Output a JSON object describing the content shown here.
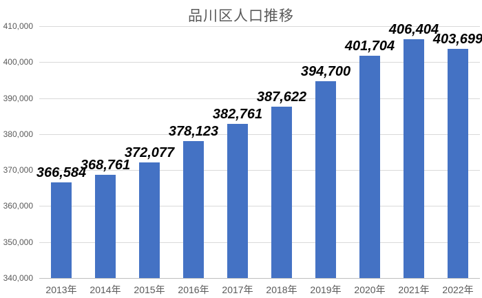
{
  "chart_data": {
    "type": "bar",
    "title": "品川区人口推移",
    "categories": [
      "2013年",
      "2014年",
      "2015年",
      "2016年",
      "2017年",
      "2018年",
      "2019年",
      "2020年",
      "2021年",
      "2022年"
    ],
    "values": [
      366584,
      368761,
      372077,
      378123,
      382761,
      387622,
      394700,
      401704,
      406404,
      403699
    ],
    "data_labels": [
      "366,584",
      "368,761",
      "372,077",
      "378,123",
      "382,761",
      "387,622",
      "394,700",
      "401,704",
      "406,404",
      "403,699"
    ],
    "xlabel": "",
    "ylabel": "",
    "ylim": [
      340000,
      410000
    ],
    "ytick_step": 10000,
    "ytick_labels": [
      "340,000",
      "350,000",
      "360,000",
      "370,000",
      "380,000",
      "390,000",
      "400,000",
      "410,000"
    ],
    "grid": true,
    "legend": "none"
  },
  "colors": {
    "bar": "#4472C4",
    "gridline": "#D9D9D9",
    "axis_line": "#BFBFBF",
    "axis_text": "#595959",
    "title_text": "#595959",
    "data_label_text": "#000000",
    "background": "#FFFFFF"
  }
}
